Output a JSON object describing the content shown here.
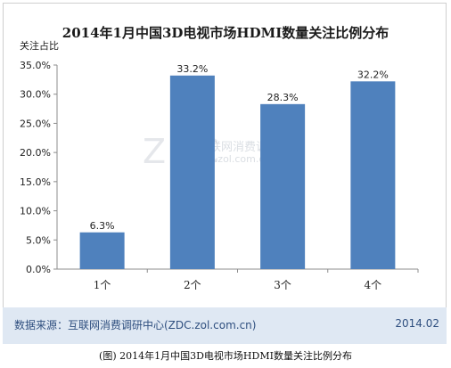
{
  "chart_data": {
    "type": "bar",
    "title": "2014年1月中国3D电视市场HDMI数量关注比例分布",
    "ylabel": "关注占比",
    "xlabel": "",
    "categories": [
      "1个",
      "2个",
      "3个",
      "4个"
    ],
    "values": [
      6.3,
      33.2,
      28.3,
      32.2
    ],
    "data_labels": [
      "6.3%",
      "33.2%",
      "28.3%",
      "32.2%"
    ],
    "ylim": [
      0,
      35
    ],
    "yticks": [
      0,
      5,
      10,
      15,
      20,
      25,
      30,
      35
    ],
    "ytick_labels": [
      "0.0%",
      "5.0%",
      "10.0%",
      "15.0%",
      "20.0%",
      "25.0%",
      "30.0%",
      "35.0%"
    ],
    "grid": false,
    "bar_color": "#4f81bd"
  },
  "footer": {
    "source": "数据来源：互联网消费调研中心(ZDC.zol.com.cn)",
    "date": "2014.02"
  },
  "watermark": {
    "logo": "ZDC",
    "name": "互联网消费调研中心",
    "url": "zdc.zol.com.cn"
  },
  "caption": "(图) 2014年1月中国3D电视市场HDMI数量关注比例分布"
}
